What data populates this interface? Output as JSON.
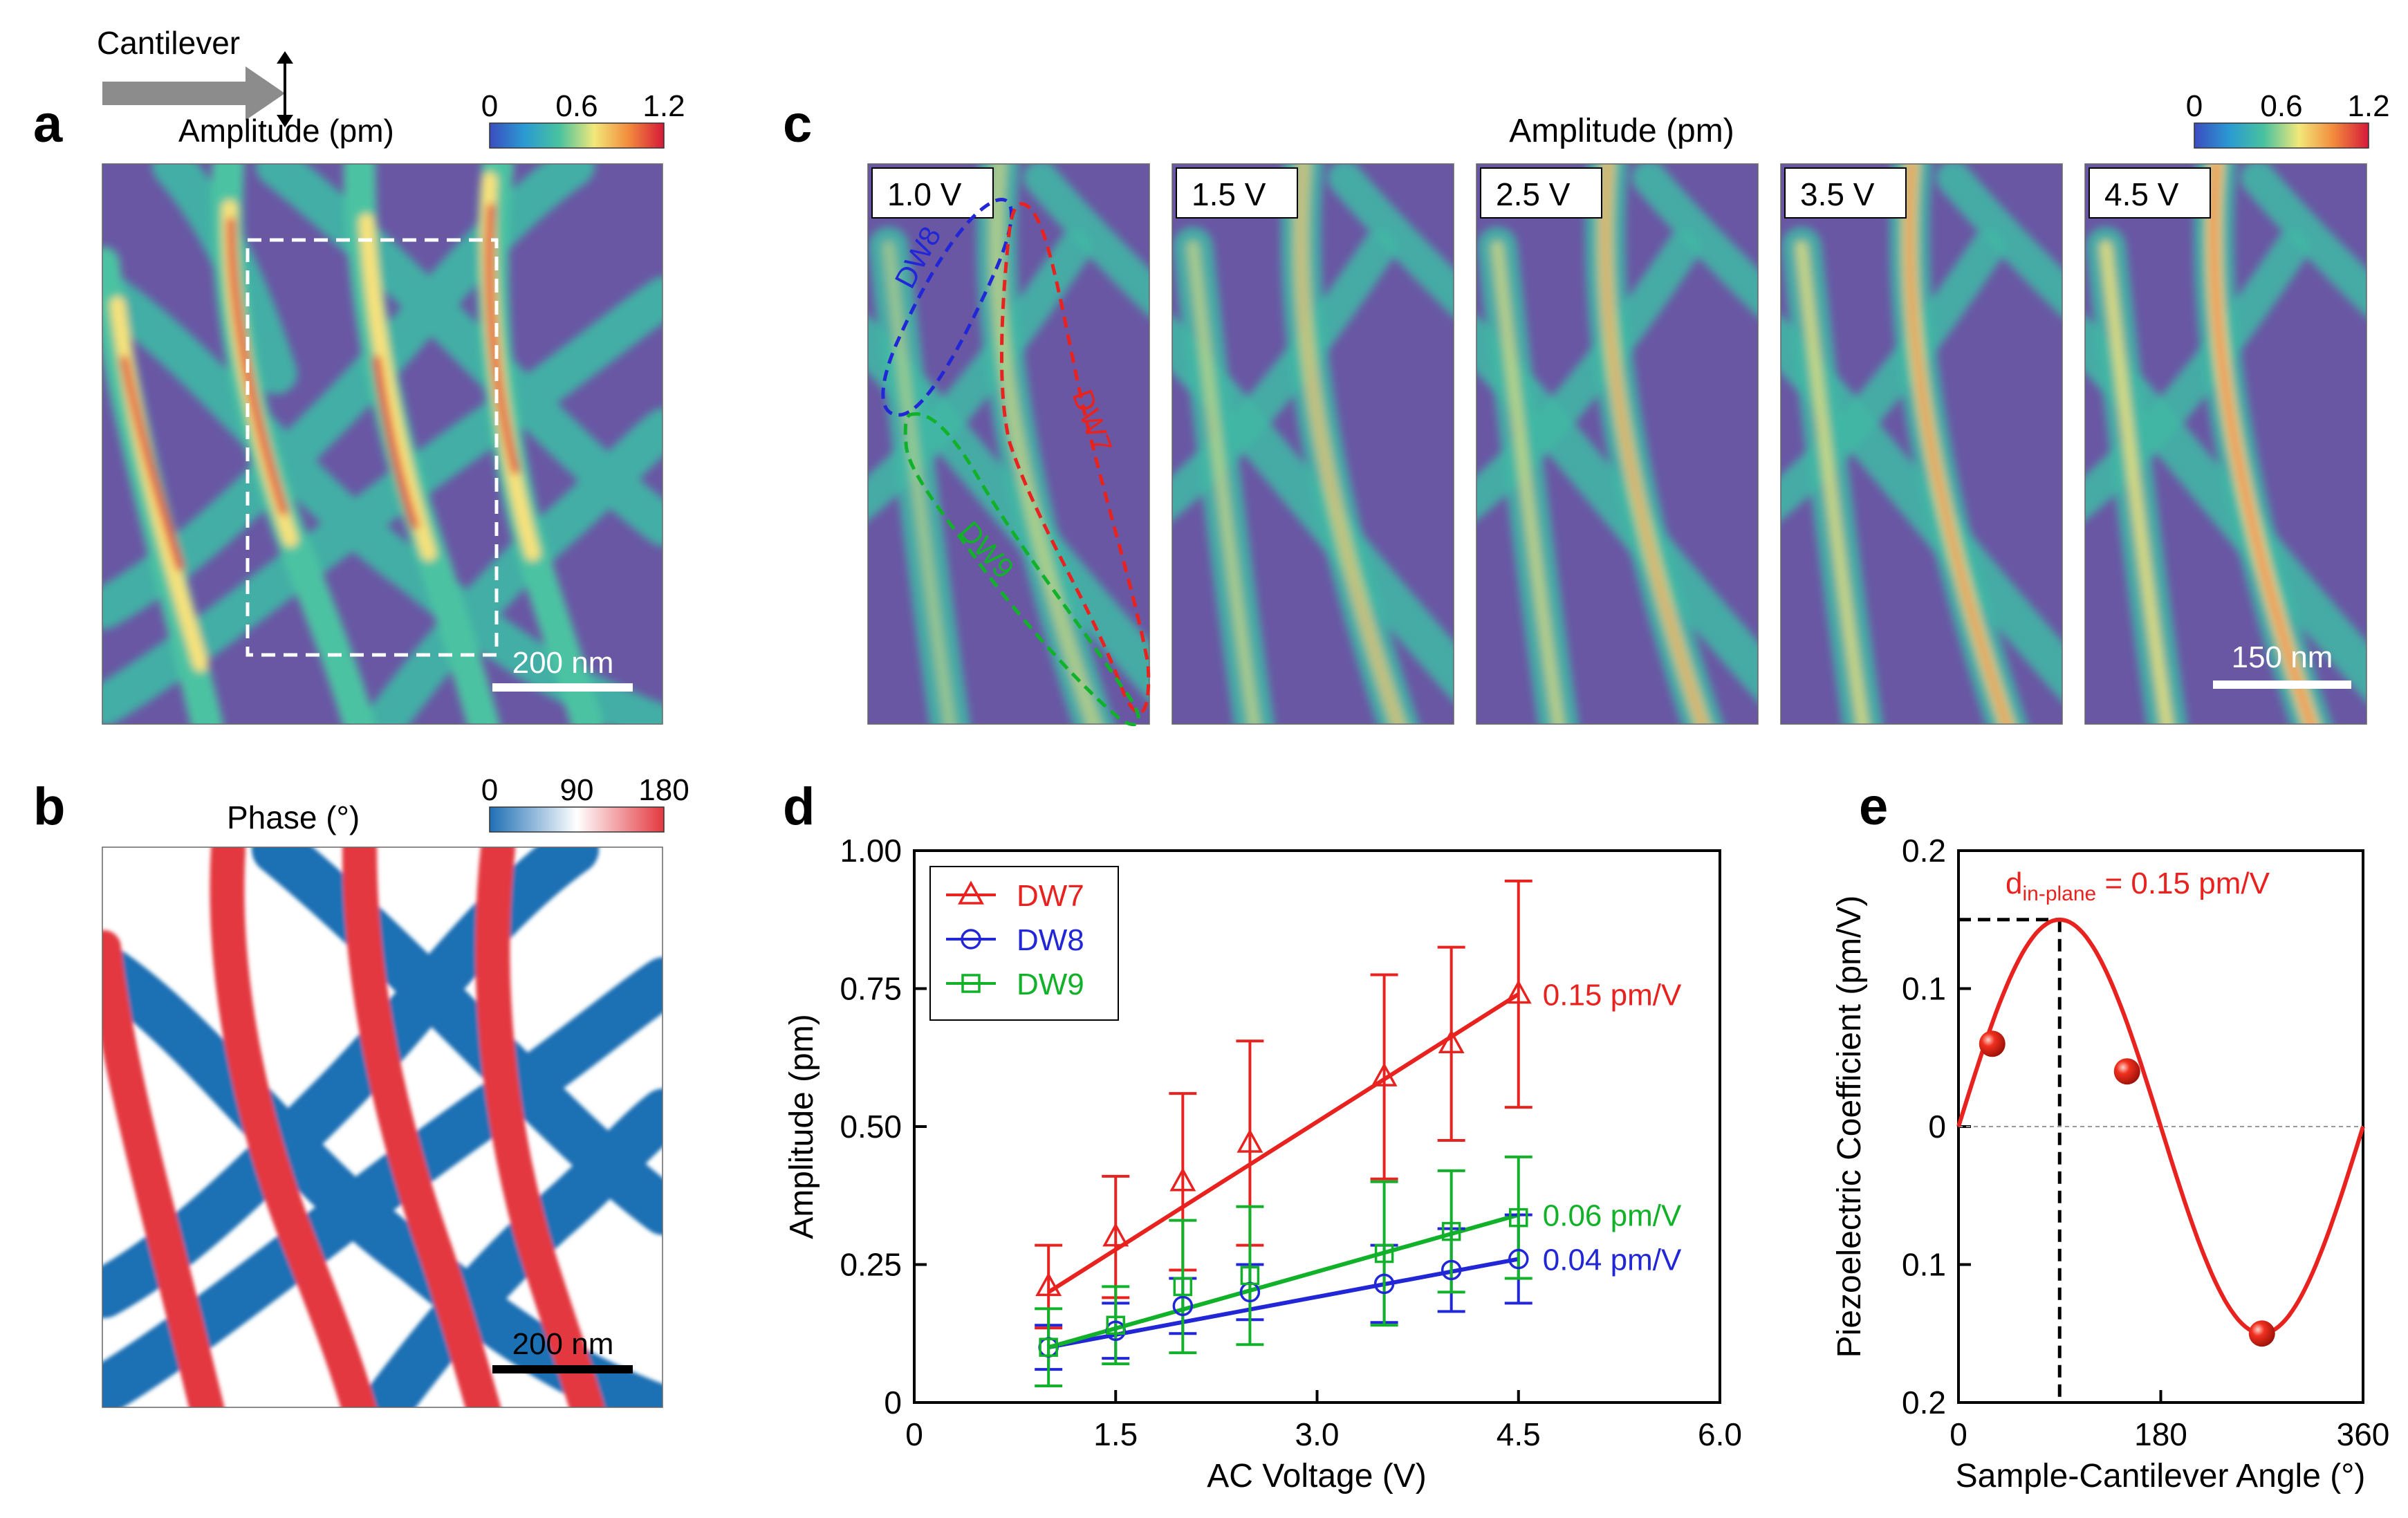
{
  "colors": {
    "amp_background": "#6957a4",
    "amp_wall": "#3fb9a6",
    "amp_hot": "#e4503d",
    "phase_blue": "#1e6fb4",
    "phase_red": "#e3383f",
    "dw7": "#e8231f",
    "dw8": "#2127d6",
    "dw9": "#12b12a",
    "fit": "#e8231f"
  },
  "panel_labels": {
    "a": "a",
    "b": "b",
    "c": "c",
    "d": "d",
    "e": "e"
  },
  "panel_a": {
    "cantilever_label": "Cantilever",
    "colorbar_title": "Amplitude (pm)",
    "colorbar_ticks": [
      "0",
      "0.6",
      "1.2"
    ],
    "scale_bar": "200 nm"
  },
  "panel_b": {
    "colorbar_title": "Phase (°)",
    "colorbar_ticks": [
      "0",
      "90",
      "180"
    ],
    "scale_bar": "200 nm"
  },
  "panel_c": {
    "title": "Amplitude (pm)",
    "colorbar_ticks": [
      "0",
      "0.6",
      "1.2"
    ],
    "frames": [
      "1.0 V",
      "1.5 V",
      "2.5 V",
      "3.5 V",
      "4.5 V"
    ],
    "wall_labels": [
      "DW8",
      "DW7",
      "DW9"
    ],
    "scale_bar": "150 nm"
  },
  "chart_data": [
    {
      "id": "d",
      "type": "scatter",
      "xlabel": "AC Voltage (V)",
      "ylabel": "Amplitude (pm)",
      "xlim": [
        0,
        6.0
      ],
      "ylim": [
        0,
        1.0
      ],
      "xticks": [
        "0",
        "1.5",
        "3.0",
        "4.5",
        "6.0"
      ],
      "yticks": [
        "0",
        "0.25",
        "0.50",
        "0.75",
        "1.00"
      ],
      "legend": "top-left",
      "series": [
        {
          "name": "DW7",
          "marker": "triangle",
          "x": [
            1.0,
            1.5,
            2.0,
            2.5,
            3.5,
            4.0,
            4.5
          ],
          "y": [
            0.21,
            0.3,
            0.4,
            0.47,
            0.59,
            0.65,
            0.74
          ],
          "err": [
            0.075,
            0.11,
            0.16,
            0.185,
            0.185,
            0.175,
            0.205
          ],
          "fit": [
            0.2,
            0.74
          ],
          "rate": "0.15 pm/V"
        },
        {
          "name": "DW8",
          "marker": "circle",
          "x": [
            1.0,
            1.5,
            2.0,
            2.5,
            3.5,
            4.0,
            4.5
          ],
          "y": [
            0.1,
            0.13,
            0.175,
            0.2,
            0.215,
            0.24,
            0.26
          ],
          "err": [
            0.04,
            0.05,
            0.05,
            0.05,
            0.07,
            0.075,
            0.08
          ],
          "fit": [
            0.1,
            0.26
          ],
          "rate": "0.04 pm/V"
        },
        {
          "name": "DW9",
          "marker": "square",
          "x": [
            1.0,
            1.5,
            2.0,
            2.5,
            3.5,
            4.0,
            4.5
          ],
          "y": [
            0.1,
            0.14,
            0.21,
            0.23,
            0.27,
            0.31,
            0.335
          ],
          "err": [
            0.07,
            0.07,
            0.12,
            0.125,
            0.13,
            0.11,
            0.11
          ],
          "fit": [
            0.1,
            0.34
          ],
          "rate": "0.06 pm/V"
        }
      ]
    },
    {
      "id": "e",
      "type": "scatter",
      "xlabel": "Sample-Cantilever Angle (°)",
      "ylabel": "Piezoelectric Coefficient (pm/V)",
      "xlim": [
        0,
        360
      ],
      "ylim": [
        -0.2,
        0.2
      ],
      "xticks": [
        "0",
        "180",
        "360"
      ],
      "yticks": [
        "0.2",
        "0.1",
        "0",
        "0.1",
        "0.2"
      ],
      "points": {
        "x": [
          30,
          150,
          270
        ],
        "y": [
          0.06,
          0.04,
          -0.15
        ]
      },
      "fit_amplitude": 0.15,
      "peak_angle": 90,
      "annotation_main": "d",
      "annotation_sub": "in-plane",
      "annotation_value": " = 0.15 pm/V"
    }
  ]
}
